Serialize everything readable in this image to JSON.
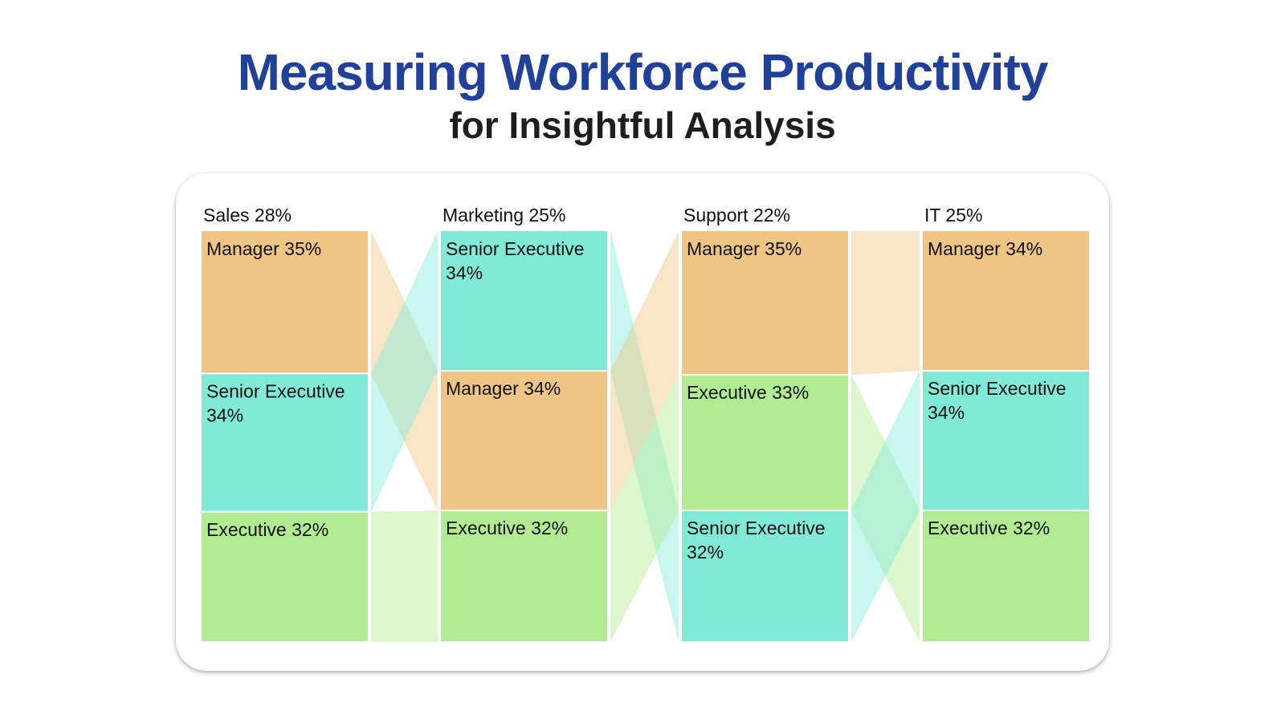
{
  "header": {
    "title": "Measuring Workforce Productivity",
    "subtitle": "for Insightful Analysis"
  },
  "colors": {
    "Manager": "#efc585",
    "Senior Executive": "#80ead6",
    "Executive": "#b1ec92",
    "title": "#21409a"
  },
  "chart_data": {
    "type": "sankey",
    "title": "Measuring Workforce Productivity",
    "subtitle": "for Insightful Analysis",
    "columns": [
      {
        "name": "Sales",
        "value": 28,
        "label": "Sales 28%",
        "segments": [
          {
            "role": "Manager",
            "value": 35,
            "label": "Manager 35%"
          },
          {
            "role": "Senior Executive",
            "value": 34,
            "label": "Senior Executive 34%"
          },
          {
            "role": "Executive",
            "value": 32,
            "label": "Executive 32%"
          }
        ]
      },
      {
        "name": "Marketing",
        "value": 25,
        "label": "Marketing 25%",
        "segments": [
          {
            "role": "Senior Executive",
            "value": 34,
            "label": "Senior Executive 34%"
          },
          {
            "role": "Manager",
            "value": 34,
            "label": "Manager 34%"
          },
          {
            "role": "Executive",
            "value": 32,
            "label": "Executive 32%"
          }
        ]
      },
      {
        "name": "Support",
        "value": 22,
        "label": "Support 22%",
        "segments": [
          {
            "role": "Manager",
            "value": 35,
            "label": "Manager 35%"
          },
          {
            "role": "Executive",
            "value": 33,
            "label": "Executive 33%"
          },
          {
            "role": "Senior Executive",
            "value": 32,
            "label": "Senior Executive 32%"
          }
        ]
      },
      {
        "name": "IT",
        "value": 25,
        "label": "IT 25%",
        "segments": [
          {
            "role": "Manager",
            "value": 34,
            "label": "Manager 34%"
          },
          {
            "role": "Senior Executive",
            "value": 34,
            "label": "Senior Executive 34%"
          },
          {
            "role": "Executive",
            "value": 32,
            "label": "Executive 32%"
          }
        ]
      }
    ]
  }
}
